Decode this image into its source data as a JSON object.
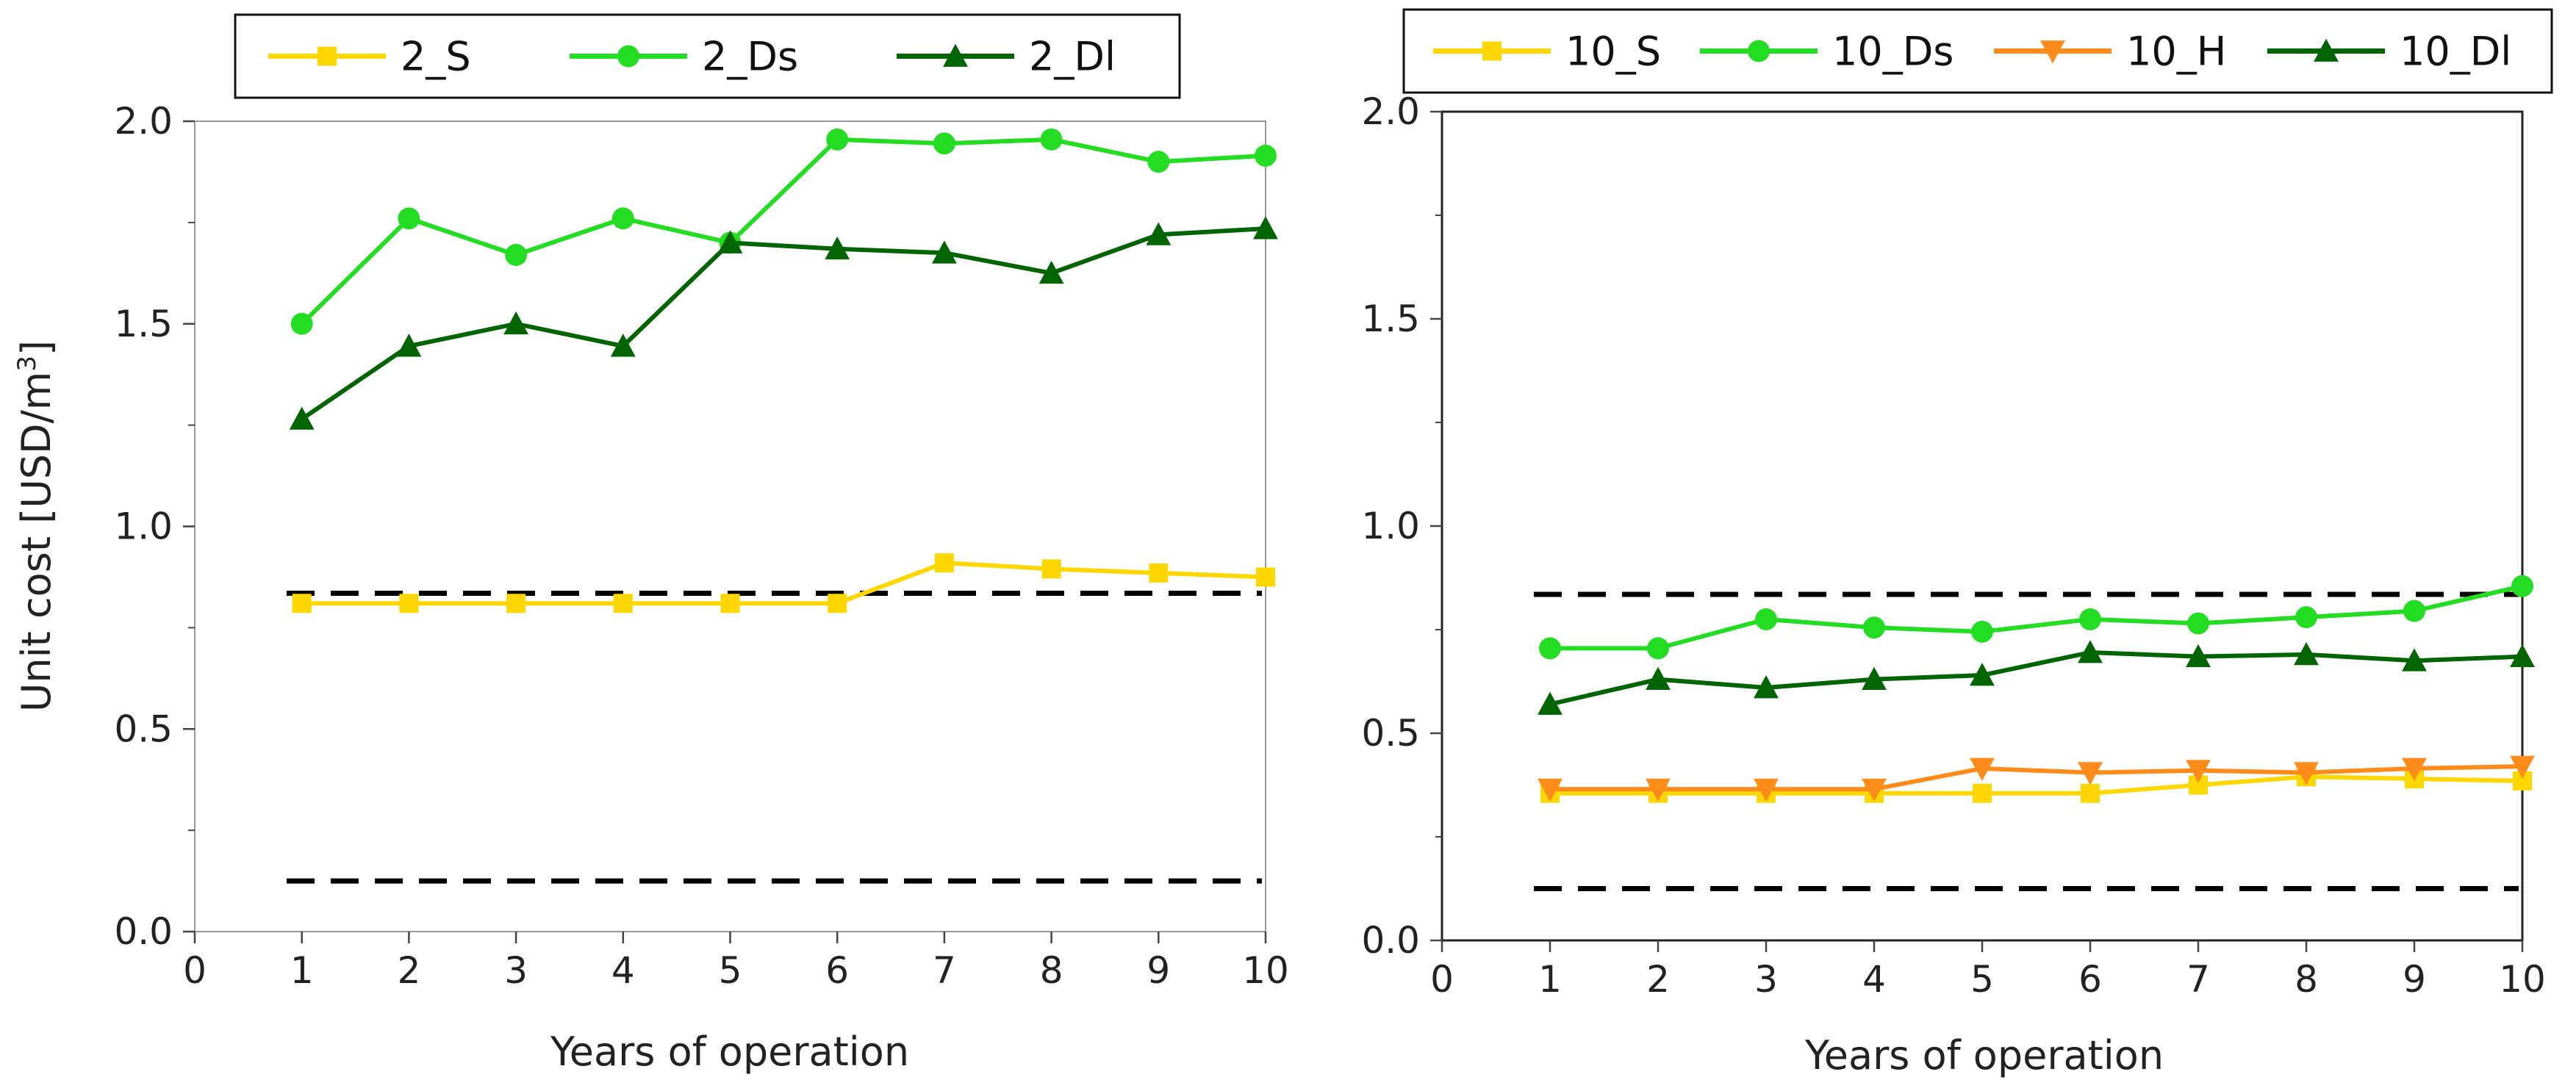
{
  "chart_data": [
    {
      "type": "line",
      "panel": "left",
      "title": "",
      "xlabel": "Years of operation",
      "ylabel_main": "Unit cost [USD/m",
      "ylabel_sup": "3",
      "ylabel_tail": "]",
      "xlim": [
        0,
        10
      ],
      "ylim": [
        0,
        2
      ],
      "xticks": [
        0,
        1,
        2,
        3,
        4,
        5,
        6,
        7,
        8,
        9,
        10
      ],
      "xtick_labels": [
        "0",
        "1",
        "2",
        "3",
        "4",
        "5",
        "6",
        "7",
        "8",
        "9",
        "10"
      ],
      "yticks": [
        0,
        0.5,
        1,
        1.5,
        2
      ],
      "ytick_labels": [
        "0.0",
        "0.5",
        "1.0",
        "1.5",
        "2.0"
      ],
      "x": [
        1,
        2,
        3,
        4,
        5,
        6,
        7,
        8,
        9,
        10
      ],
      "legend_position": "top",
      "series": [
        {
          "name": "2_S",
          "color": "#FFD700",
          "marker": "square",
          "values": [
            0.81,
            0.81,
            0.81,
            0.81,
            0.81,
            0.81,
            0.91,
            0.895,
            0.885,
            0.875
          ]
        },
        {
          "name": "2_Ds",
          "color": "#22DD22",
          "marker": "circle",
          "values": [
            1.5,
            1.76,
            1.67,
            1.76,
            1.7,
            1.955,
            1.945,
            1.955,
            1.9,
            1.915
          ]
        },
        {
          "name": "2_Dl",
          "color": "#006400",
          "marker": "triangle-up",
          "values": [
            1.265,
            1.445,
            1.5,
            1.445,
            1.7,
            1.685,
            1.675,
            1.625,
            1.72,
            1.735
          ]
        }
      ],
      "reference_lines": [
        0.835,
        0.125
      ],
      "reference_color": "#000000"
    },
    {
      "type": "line",
      "panel": "right",
      "title": "",
      "xlabel": "Years of operation",
      "ylabel_main": "",
      "ylabel_sup": "",
      "ylabel_tail": "",
      "xlim": [
        0,
        10
      ],
      "ylim": [
        0,
        2
      ],
      "xticks": [
        0,
        1,
        2,
        3,
        4,
        5,
        6,
        7,
        8,
        9,
        10
      ],
      "xtick_labels": [
        "0",
        "1",
        "2",
        "3",
        "4",
        "5",
        "6",
        "7",
        "8",
        "9",
        "10"
      ],
      "yticks": [
        0,
        0.5,
        1,
        1.5,
        2
      ],
      "ytick_labels": [
        "0.0",
        "0.5",
        "1.0",
        "1.5",
        "2.0"
      ],
      "x": [
        1,
        2,
        3,
        4,
        5,
        6,
        7,
        8,
        9,
        10
      ],
      "legend_position": "top",
      "series": [
        {
          "name": "10_S",
          "color": "#FFD700",
          "marker": "square",
          "values": [
            0.355,
            0.355,
            0.355,
            0.355,
            0.355,
            0.355,
            0.375,
            0.395,
            0.39,
            0.385
          ]
        },
        {
          "name": "10_Ds",
          "color": "#22DD22",
          "marker": "circle",
          "values": [
            0.705,
            0.705,
            0.775,
            0.755,
            0.745,
            0.775,
            0.765,
            0.78,
            0.795,
            0.855
          ]
        },
        {
          "name": "10_H",
          "color": "#FF8C1A",
          "marker": "triangle-down",
          "values": [
            0.365,
            0.365,
            0.365,
            0.365,
            0.415,
            0.405,
            0.41,
            0.405,
            0.415,
            0.42
          ]
        },
        {
          "name": "10_Dl",
          "color": "#006400",
          "marker": "triangle-up",
          "values": [
            0.57,
            0.63,
            0.61,
            0.63,
            0.64,
            0.695,
            0.685,
            0.69,
            0.675,
            0.685
          ]
        }
      ],
      "reference_lines": [
        0.835,
        0.125
      ],
      "reference_color": "#000000"
    }
  ]
}
